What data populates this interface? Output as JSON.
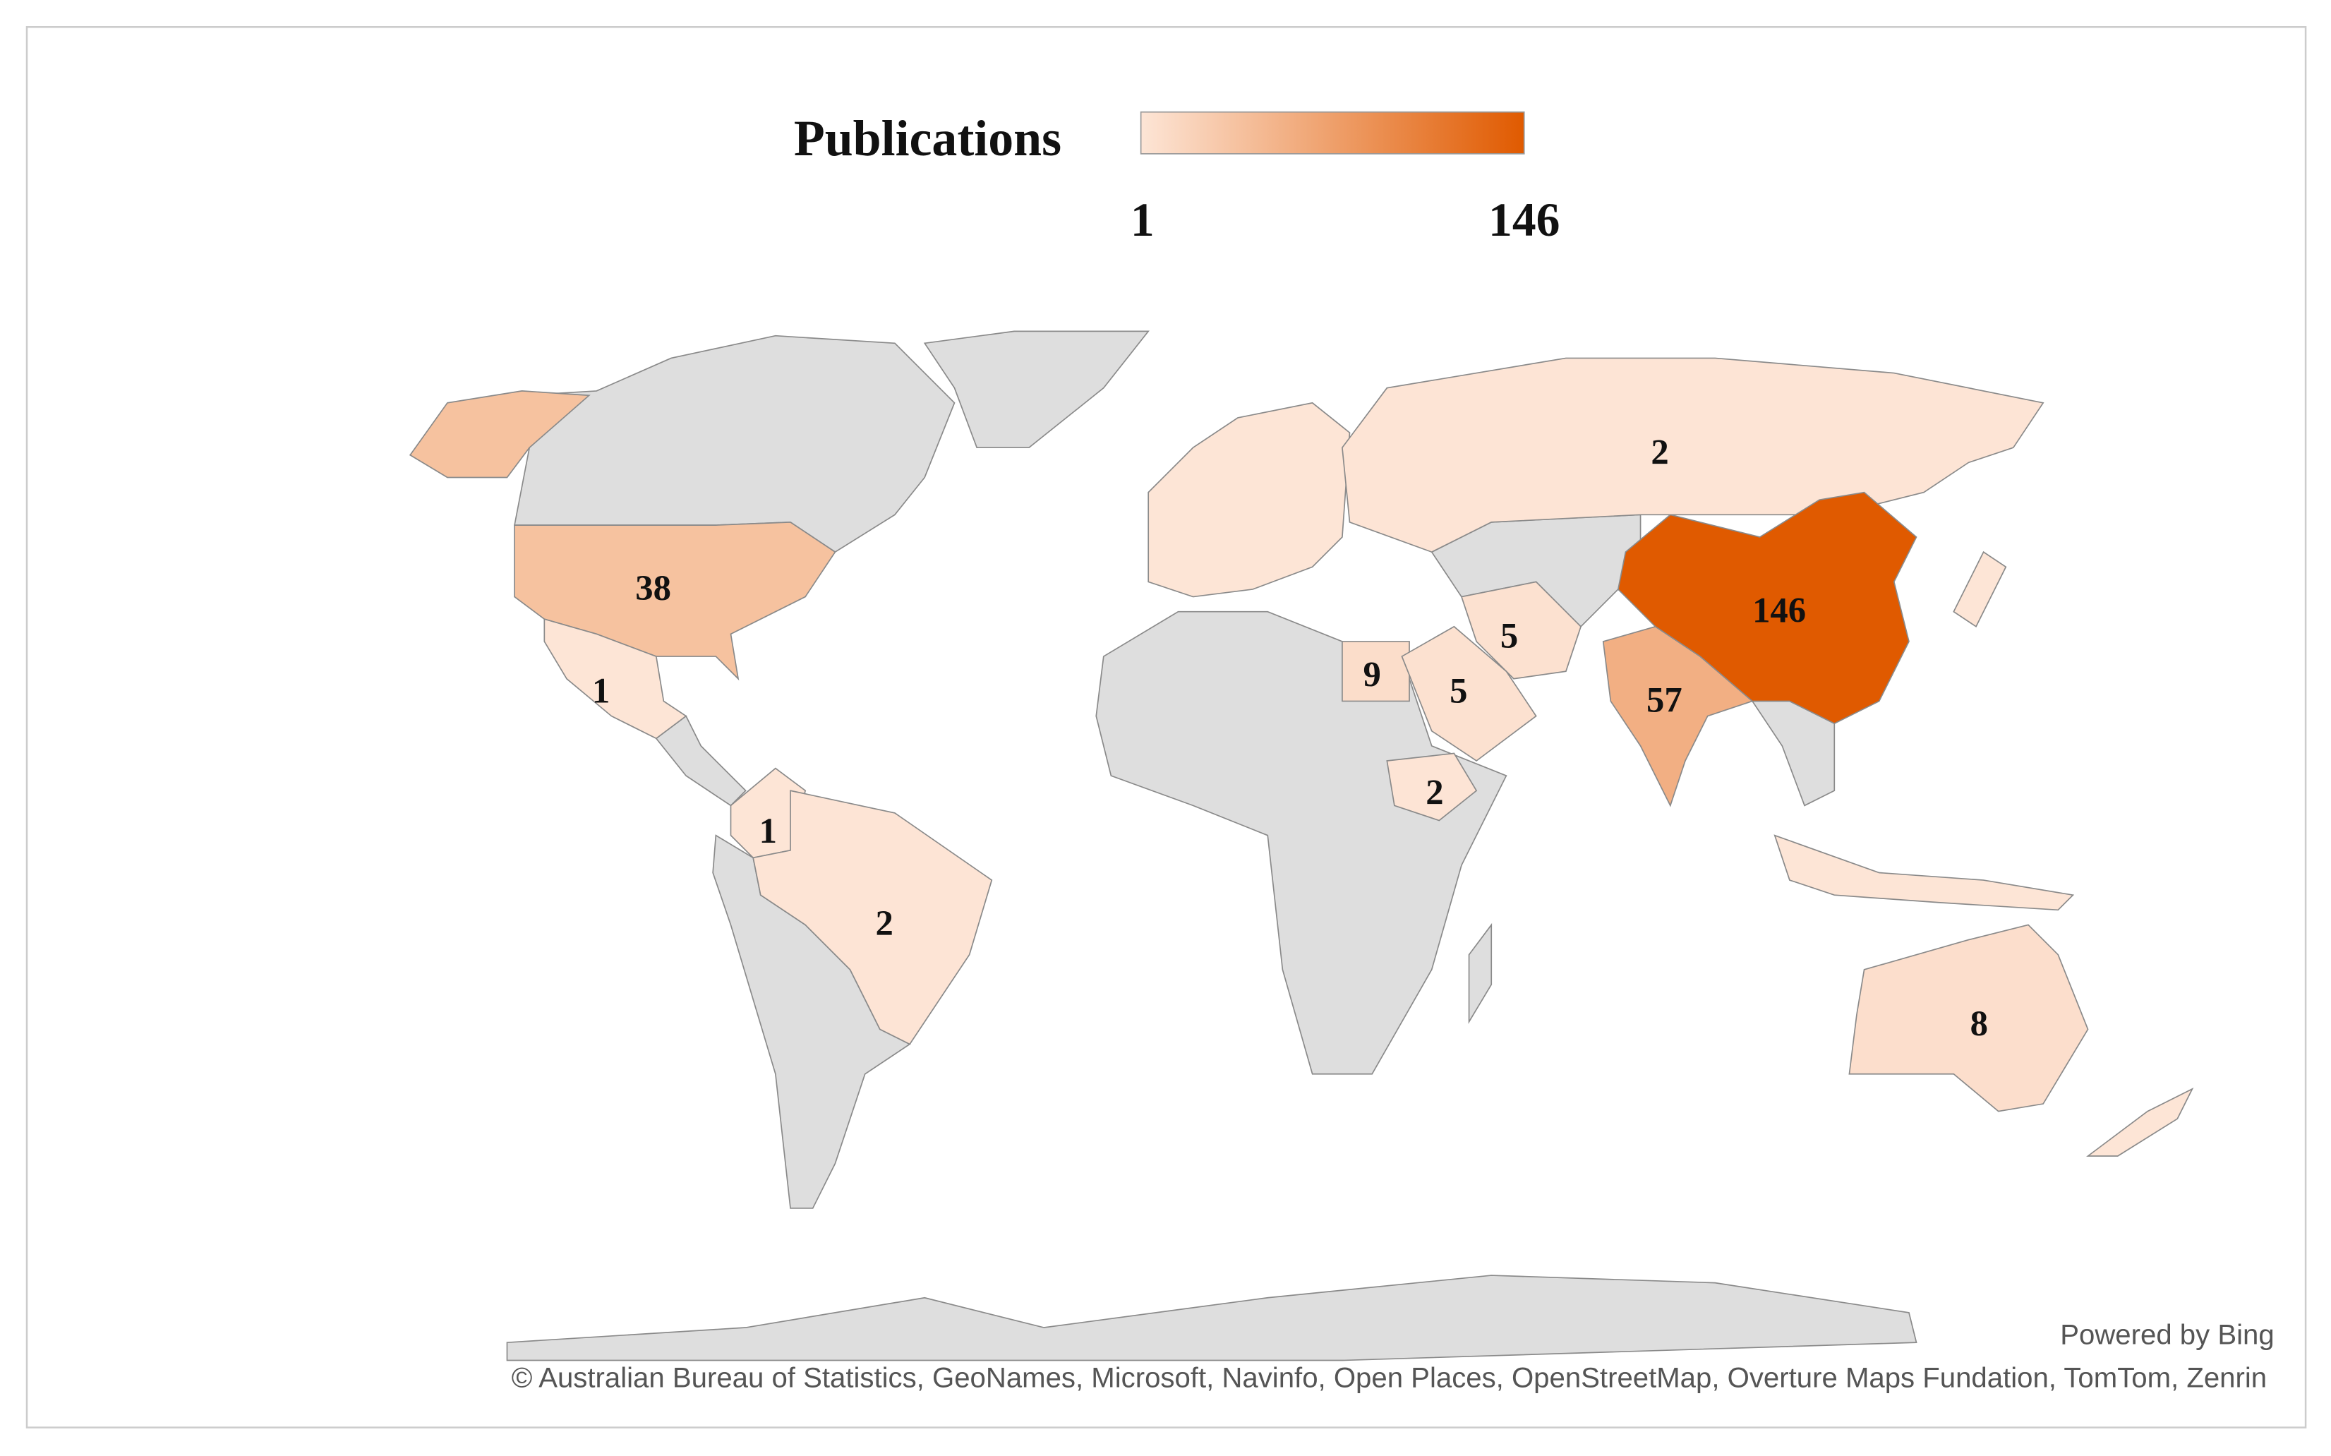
{
  "chart_data": {
    "type": "choropleth",
    "legend_title": "Publications",
    "scale": {
      "min": 1,
      "max": 146,
      "colors": [
        "#fde5d6",
        "#e05a00"
      ]
    },
    "values": [
      2,
      38,
      1,
      1,
      2,
      9,
      5,
      5,
      2,
      57,
      146,
      8
    ]
  },
  "credits": {
    "provider": "Powered by Bing",
    "attribution": "© Australian Bureau of Statistics, GeoNames, Microsoft, Navinfo, Open Places, OpenStreetMap, Overture Maps Fundation, TomTom, Zenrin"
  }
}
